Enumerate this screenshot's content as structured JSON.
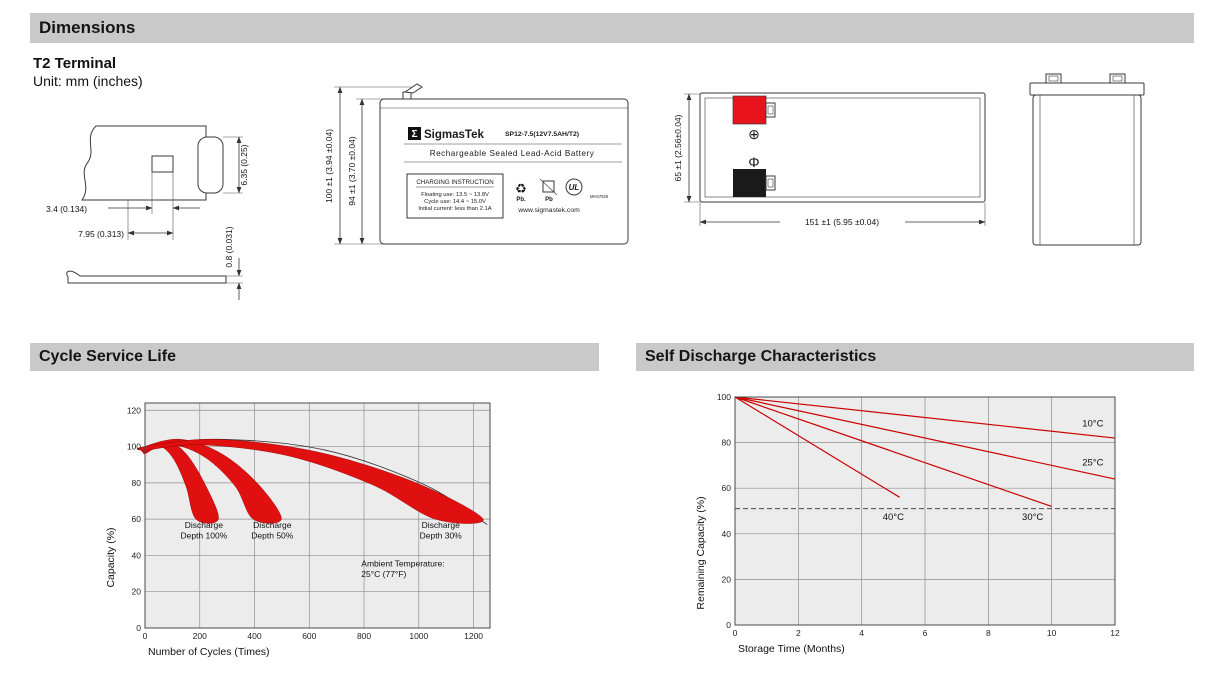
{
  "sections": {
    "dimensions": {
      "title": "Dimensions"
    },
    "cycle_life": {
      "title": "Cycle Service Life"
    },
    "self_discharge": {
      "title": "Self Discharge Characteristics"
    }
  },
  "terminal": {
    "title": "T2 Terminal",
    "unit": "Unit: mm (inches)",
    "dims": {
      "slot_width": "3.4 (0.134)",
      "pitch": "7.95 (0.313)",
      "height": "6.35 (0.25)",
      "thickness": "0.8 (0.031)"
    }
  },
  "front_view": {
    "logo_sigma": "Σ",
    "brand": "SigmasTek",
    "model": "SP12-7.5(12V7.5AH/T2)",
    "battery_type": "Rechargeable Sealed Lead-Acid Battery",
    "charging_title": "CHARGING INSTRUCTION",
    "charging_line1": "Floating use: 13.5 ~ 13.8V",
    "charging_line2": "Cycle use: 14.4 ~ 15.0V",
    "charging_line3": "Initial current: less than 2.1A",
    "recycle_icon": "♻",
    "pb_label1": "Pb.",
    "pb_label2": "Pb",
    "ul_mark": "UL",
    "ul_number": "MH47925",
    "website": "www.sigmastek.com",
    "dim_height_overall": "100 ±1 (3.94 ±0.04)",
    "dim_height_case": "94 ±1 (3.70 ±0.04)"
  },
  "side_view": {
    "positive_symbol": "⊕",
    "negative_symbol": "Φ",
    "dim_height": "65 ±1 (2.56±0.04)",
    "dim_length": "151 ±1 (5.95 ±0.04)"
  },
  "chart_data": [
    {
      "type": "area",
      "title": "Cycle Service Life",
      "xlabel": "Number of Cycles (Times)",
      "ylabel": "Capacity (%)",
      "xlim": [
        0,
        1260
      ],
      "ylim": [
        0,
        124
      ],
      "xticks": [
        0,
        200,
        400,
        600,
        800,
        1000,
        1200
      ],
      "yticks": [
        0,
        20,
        40,
        60,
        80,
        100,
        120
      ],
      "grid": true,
      "legend": "none",
      "series_color": "#e01010",
      "bands": [
        {
          "name": "Discharge Depth 100%",
          "upper": [
            [
              0,
              99
            ],
            [
              80,
              103
            ],
            [
              150,
              96
            ],
            [
              220,
              79
            ],
            [
              268,
              60
            ]
          ],
          "lower": [
            [
              0,
              96
            ],
            [
              55,
              100
            ],
            [
              105,
              93
            ],
            [
              150,
              78
            ],
            [
              186,
              60
            ]
          ]
        },
        {
          "name": "Discharge Depth 50%",
          "upper": [
            [
              0,
              100
            ],
            [
              130,
              104
            ],
            [
              280,
              96
            ],
            [
              415,
              79
            ],
            [
              498,
              60
            ]
          ],
          "lower": [
            [
              0,
              97
            ],
            [
              100,
              101
            ],
            [
              220,
              94
            ],
            [
              330,
              78
            ],
            [
              395,
              60
            ]
          ]
        },
        {
          "name": "Discharge Depth 30%",
          "upper": [
            [
              0,
              100
            ],
            [
              260,
              104
            ],
            [
              630,
              97
            ],
            [
              990,
              80
            ],
            [
              1235,
              60
            ]
          ],
          "lower": [
            [
              0,
              98
            ],
            [
              200,
              101
            ],
            [
              520,
              95
            ],
            [
              830,
              79
            ],
            [
              1060,
              60
            ]
          ]
        }
      ],
      "envelope": [
        [
          0,
          100
        ],
        [
          270,
          104
        ],
        [
          660,
          98
        ],
        [
          1020,
          79
        ],
        [
          1250,
          57
        ]
      ],
      "annotations": [
        {
          "lines": [
            "Discharge",
            "Depth 100%"
          ],
          "x": 215,
          "y": 55,
          "anchor": "middle"
        },
        {
          "lines": [
            "Discharge",
            "Depth 50%"
          ],
          "x": 465,
          "y": 55,
          "anchor": "middle"
        },
        {
          "lines": [
            "Discharge",
            "Depth 30%"
          ],
          "x": 1080,
          "y": 55,
          "anchor": "middle"
        },
        {
          "lines": [
            "Ambient Temperature:",
            "25°C (77°F)"
          ],
          "x": 790,
          "y": 34,
          "anchor": "start"
        }
      ]
    },
    {
      "type": "line",
      "title": "Self Discharge Characteristics",
      "xlabel": "Storage Time (Months)",
      "ylabel": "Remaining Capacity (%)",
      "xlim": [
        0,
        12
      ],
      "ylim": [
        0,
        100
      ],
      "xticks": [
        0,
        2,
        4,
        6,
        8,
        10,
        12
      ],
      "yticks": [
        0,
        20,
        40,
        60,
        80,
        100
      ],
      "grid": true,
      "legend": "inline-labels",
      "series_color": "#cc0000",
      "series": [
        {
          "name": "10°C",
          "points": [
            [
              0,
              100
            ],
            [
              12,
              82
            ]
          ],
          "label_x": 11.3,
          "label_y": 87
        },
        {
          "name": "25°C",
          "points": [
            [
              0,
              100
            ],
            [
              12,
              64
            ]
          ],
          "label_x": 11.3,
          "label_y": 70
        },
        {
          "name": "30°C",
          "points": [
            [
              0,
              100
            ],
            [
              10,
              52
            ]
          ],
          "label_x": 9.4,
          "label_y": 46
        },
        {
          "name": "40°C",
          "points": [
            [
              0,
              100
            ],
            [
              5.2,
              56
            ]
          ],
          "label_x": 5.0,
          "label_y": 46
        }
      ],
      "dash_line_y": 51
    }
  ]
}
